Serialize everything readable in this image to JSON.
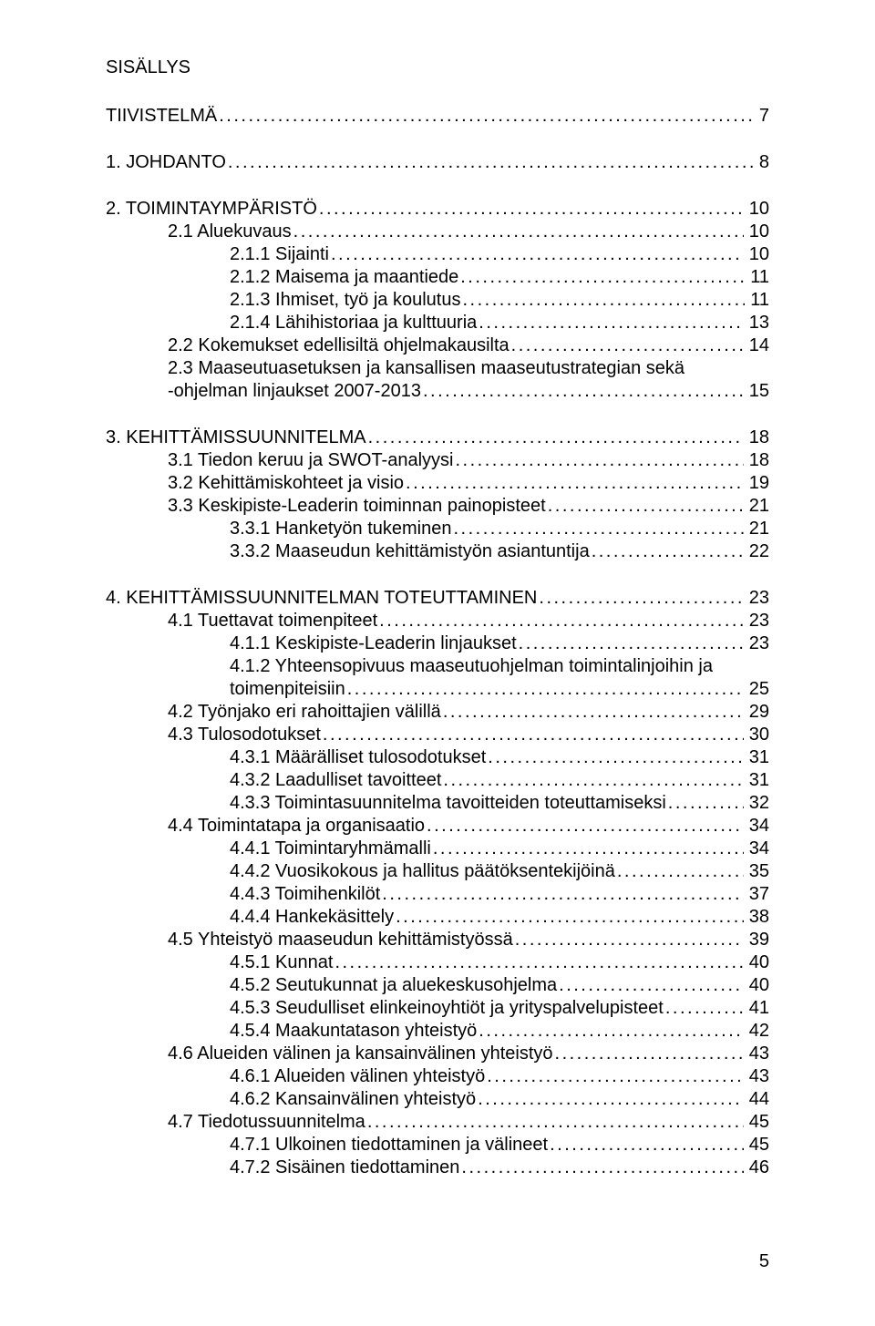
{
  "heading": "SISÄLLYS",
  "footer_page": "5",
  "toc": [
    {
      "type": "line",
      "indent": 0,
      "label": "TIIVISTELMÄ",
      "page": "7"
    },
    {
      "type": "spacer"
    },
    {
      "type": "line",
      "indent": 0,
      "label": "1. JOHDANTO",
      "page": "8"
    },
    {
      "type": "spacer"
    },
    {
      "type": "line",
      "indent": 0,
      "label": "2. TOIMINTAYMPÄRISTÖ",
      "page": "10"
    },
    {
      "type": "line",
      "indent": 1,
      "label": "2.1 Aluekuvaus",
      "page": "10"
    },
    {
      "type": "line",
      "indent": 2,
      "label": "2.1.1 Sijainti",
      "page": "10"
    },
    {
      "type": "line",
      "indent": 2,
      "label": "2.1.2 Maisema ja maantiede",
      "page": "11"
    },
    {
      "type": "line",
      "indent": 2,
      "label": "2.1.3 Ihmiset, työ ja koulutus",
      "page": "11"
    },
    {
      "type": "line",
      "indent": 2,
      "label": "2.1.4 Lähihistoriaa ja kulttuuria",
      "page": "13"
    },
    {
      "type": "line",
      "indent": 1,
      "label": "2.2 Kokemukset edellisiltä ohjelmakausilta",
      "page": "14"
    },
    {
      "type": "plain",
      "indent": 1,
      "label": "2.3 Maaseutuasetuksen ja kansallisen maaseutustrategian sekä"
    },
    {
      "type": "line",
      "indent": 1,
      "label": "-ohjelman linjaukset 2007-2013",
      "page": "15"
    },
    {
      "type": "spacer"
    },
    {
      "type": "line",
      "indent": 0,
      "label": "3. KEHITTÄMISSUUNNITELMA",
      "page": "18"
    },
    {
      "type": "line",
      "indent": 1,
      "label": "3.1 Tiedon keruu ja SWOT-analyysi",
      "page": "18"
    },
    {
      "type": "line",
      "indent": 1,
      "label": "3.2 Kehittämiskohteet ja visio",
      "page": "19"
    },
    {
      "type": "line",
      "indent": 1,
      "label": "3.3 Keskipiste-Leaderin toiminnan painopisteet",
      "page": "21"
    },
    {
      "type": "line",
      "indent": 2,
      "label": "3.3.1 Hanketyön tukeminen",
      "page": "21"
    },
    {
      "type": "line",
      "indent": 2,
      "label": "3.3.2 Maaseudun kehittämistyön asiantuntija",
      "page": "22"
    },
    {
      "type": "spacer"
    },
    {
      "type": "line",
      "indent": 0,
      "label": "4. KEHITTÄMISSUUNNITELMAN TOTEUTTAMINEN",
      "page": "23"
    },
    {
      "type": "line",
      "indent": 1,
      "label": "4.1 Tuettavat toimenpiteet",
      "page": "23"
    },
    {
      "type": "line",
      "indent": 2,
      "label": "4.1.1 Keskipiste-Leaderin linjaukset",
      "page": "23"
    },
    {
      "type": "plain",
      "indent": 2,
      "label": "4.1.2 Yhteensopivuus maaseutuohjelman toimintalinjoihin ja"
    },
    {
      "type": "line",
      "indent": 2,
      "label": "toimenpiteisiin",
      "page": "25"
    },
    {
      "type": "line",
      "indent": 1,
      "label": "4.2 Työnjako eri rahoittajien välillä",
      "page": "29"
    },
    {
      "type": "line",
      "indent": 1,
      "label": "4.3 Tulosodotukset",
      "page": "30"
    },
    {
      "type": "line",
      "indent": 2,
      "label": "4.3.1 Määrälliset tulosodotukset",
      "page": "31"
    },
    {
      "type": "line",
      "indent": 2,
      "label": "4.3.2 Laadulliset tavoitteet",
      "page": "31"
    },
    {
      "type": "line",
      "indent": 2,
      "label": "4.3.3 Toimintasuunnitelma tavoitteiden toteuttamiseksi",
      "page": "32"
    },
    {
      "type": "line",
      "indent": 1,
      "label": "4.4 Toimintatapa ja organisaatio",
      "page": "34"
    },
    {
      "type": "line",
      "indent": 2,
      "label": "4.4.1 Toimintaryhmämalli",
      "page": "34"
    },
    {
      "type": "line",
      "indent": 2,
      "label": "4.4.2 Vuosikokous ja hallitus päätöksentekijöinä",
      "page": "35"
    },
    {
      "type": "line",
      "indent": 2,
      "label": "4.4.3 Toimihenkilöt",
      "page": "37"
    },
    {
      "type": "line",
      "indent": 2,
      "label": "4.4.4 Hankekäsittely",
      "page": "38"
    },
    {
      "type": "line",
      "indent": 1,
      "label": "4.5 Yhteistyö maaseudun kehittämistyössä",
      "page": "39"
    },
    {
      "type": "line",
      "indent": 2,
      "label": "4.5.1 Kunnat",
      "page": "40"
    },
    {
      "type": "line",
      "indent": 2,
      "label": "4.5.2 Seutukunnat ja aluekeskusohjelma",
      "page": "40"
    },
    {
      "type": "line",
      "indent": 2,
      "label": "4.5.3 Seudulliset elinkeinoyhtiöt ja yrityspalvelupisteet",
      "page": "41"
    },
    {
      "type": "line",
      "indent": 2,
      "label": "4.5.4 Maakuntatason yhteistyö",
      "page": "42"
    },
    {
      "type": "line",
      "indent": 1,
      "label": "4.6 Alueiden välinen ja kansainvälinen yhteistyö",
      "page": "43"
    },
    {
      "type": "line",
      "indent": 2,
      "label": "4.6.1 Alueiden välinen yhteistyö",
      "page": "43"
    },
    {
      "type": "line",
      "indent": 2,
      "label": "4.6.2 Kansainvälinen yhteistyö",
      "page": "44"
    },
    {
      "type": "line",
      "indent": 1,
      "label": "4.7 Tiedotussuunnitelma",
      "page": "45"
    },
    {
      "type": "line",
      "indent": 2,
      "label": "4.7.1 Ulkoinen tiedottaminen ja välineet",
      "page": "45"
    },
    {
      "type": "line",
      "indent": 2,
      "label": "4.7.2 Sisäinen tiedottaminen",
      "page": "46"
    }
  ]
}
